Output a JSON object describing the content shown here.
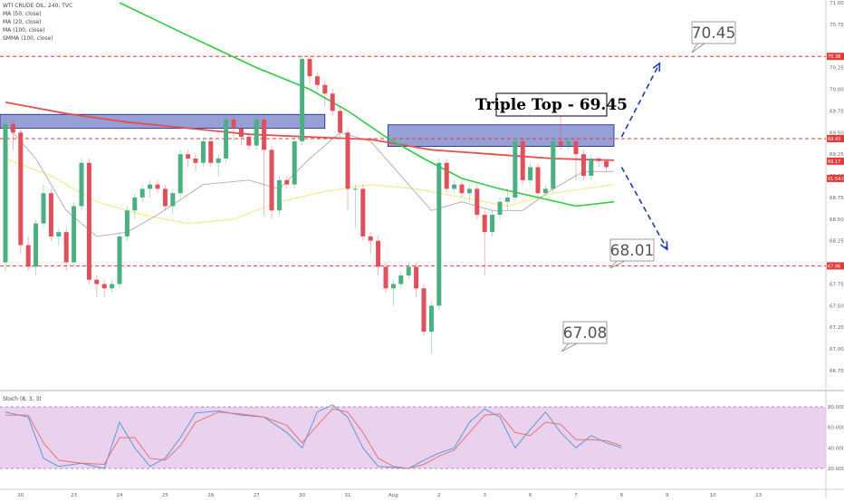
{
  "chart_data": {
    "type": "candlestick",
    "symbol_line": "WTI CRUDE OIL, 240, TVC",
    "indicator_legend": [
      "MA (50, close)",
      "MA (20, close)",
      "MA (100, close)",
      "SMMA (100, close)"
    ],
    "annotation_title": "Triple Top - 69.45",
    "callouts": [
      "70.45",
      "68.01",
      "67.08"
    ],
    "price_ticks": [
      {
        "price": 71.0,
        "label": "71.00"
      },
      {
        "price": 70.75,
        "label": "70.75"
      },
      {
        "price": 70.25,
        "label": "70.25"
      },
      {
        "price": 70.0,
        "label": "70.00"
      },
      {
        "price": 69.75,
        "label": "69.75"
      },
      {
        "price": 69.5,
        "label": "69.50"
      },
      {
        "price": 69.25,
        "label": "69.25"
      },
      {
        "price": 69.0,
        "label": "69.00"
      },
      {
        "price": 68.75,
        "label": "68.75"
      },
      {
        "price": 68.5,
        "label": "68.50"
      },
      {
        "price": 68.25,
        "label": "68.25"
      },
      {
        "price": 67.75,
        "label": "67.75"
      },
      {
        "price": 67.5,
        "label": "67.50"
      },
      {
        "price": 67.25,
        "label": "67.25"
      },
      {
        "price": 67.0,
        "label": "67.00"
      },
      {
        "price": 66.75,
        "label": "66.75"
      }
    ],
    "price_tags": [
      {
        "price": 70.38,
        "label": "70.38",
        "color": "#e53935"
      },
      {
        "price": 69.43,
        "label": "69.43",
        "color": "#e53935"
      },
      {
        "price": 69.17,
        "label": "69.17",
        "color": "#e53935"
      },
      {
        "price": 68.97,
        "label": "01:54:00",
        "color": "#e53935"
      },
      {
        "price": 67.96,
        "label": "67.96",
        "color": "#e53935"
      }
    ],
    "resistance_lines": [
      70.38,
      69.43,
      67.96
    ],
    "zones": [
      {
        "from_index": 0,
        "to_index": 42,
        "low": 69.55,
        "high": 69.71
      },
      {
        "from_index": 51,
        "to_index": 80,
        "low": 69.34,
        "high": 69.59
      }
    ],
    "x_labels": [
      {
        "index": 2,
        "label": "20"
      },
      {
        "index": 9,
        "label": "23"
      },
      {
        "index": 15,
        "label": "24"
      },
      {
        "index": 21,
        "label": "25"
      },
      {
        "index": 27,
        "label": "26"
      },
      {
        "index": 33,
        "label": "27"
      },
      {
        "index": 39,
        "label": "30"
      },
      {
        "index": 45,
        "label": "31"
      },
      {
        "index": 51,
        "label": "Aug"
      },
      {
        "index": 57,
        "label": "2"
      },
      {
        "index": 63,
        "label": "3"
      },
      {
        "index": 69,
        "label": "6"
      },
      {
        "index": 75,
        "label": "7"
      },
      {
        "index": 81,
        "label": "8"
      },
      {
        "index": 87,
        "label": "9"
      },
      {
        "index": 93,
        "label": "10"
      },
      {
        "index": 99,
        "label": "13"
      }
    ],
    "candles": [
      [
        68.0,
        69.6,
        69.65,
        67.9
      ],
      [
        69.6,
        69.5,
        69.65,
        69.3
      ],
      [
        69.5,
        68.2,
        69.55,
        68.1
      ],
      [
        68.2,
        67.95,
        68.3,
        67.9
      ],
      [
        67.95,
        68.45,
        68.5,
        67.85
      ],
      [
        68.45,
        68.8,
        68.9,
        68.4
      ],
      [
        68.8,
        68.3,
        68.85,
        68.25
      ],
      [
        68.3,
        68.35,
        68.4,
        68.2
      ],
      [
        68.35,
        68.0,
        68.4,
        67.9
      ],
      [
        68.0,
        68.65,
        68.7,
        67.95
      ],
      [
        68.65,
        69.15,
        69.2,
        68.6
      ],
      [
        69.15,
        67.8,
        69.2,
        67.75
      ],
      [
        67.8,
        67.75,
        67.85,
        67.6
      ],
      [
        67.75,
        67.7,
        67.8,
        67.6
      ],
      [
        67.7,
        67.75,
        67.8,
        67.65
      ],
      [
        67.75,
        68.3,
        68.35,
        67.7
      ],
      [
        68.3,
        68.6,
        68.65,
        68.25
      ],
      [
        68.6,
        68.75,
        68.8,
        68.5
      ],
      [
        68.75,
        68.85,
        68.9,
        68.7
      ],
      [
        68.85,
        68.9,
        68.95,
        68.75
      ],
      [
        68.9,
        68.85,
        68.95,
        68.8
      ],
      [
        68.85,
        68.65,
        68.9,
        68.6
      ],
      [
        68.65,
        68.8,
        68.85,
        68.55
      ],
      [
        68.8,
        69.25,
        69.3,
        68.75
      ],
      [
        69.25,
        69.2,
        69.3,
        69.1
      ],
      [
        69.2,
        69.15,
        69.25,
        69.05
      ],
      [
        69.15,
        69.4,
        69.45,
        69.1
      ],
      [
        69.4,
        69.15,
        69.45,
        69.1
      ],
      [
        69.15,
        69.2,
        69.25,
        69.0
      ],
      [
        69.2,
        69.65,
        69.7,
        69.15
      ],
      [
        69.65,
        69.55,
        69.7,
        69.4
      ],
      [
        69.55,
        69.45,
        69.6,
        69.35
      ],
      [
        69.45,
        69.35,
        69.5,
        69.3
      ],
      [
        69.35,
        69.65,
        69.7,
        69.3
      ],
      [
        69.65,
        69.3,
        69.7,
        68.55
      ],
      [
        69.3,
        68.6,
        69.35,
        68.5
      ],
      [
        68.6,
        68.95,
        69.0,
        68.55
      ],
      [
        68.95,
        68.9,
        69.0,
        68.85
      ],
      [
        68.9,
        69.4,
        69.45,
        68.85
      ],
      [
        69.4,
        70.35,
        70.4,
        69.35
      ],
      [
        70.35,
        70.15,
        70.4,
        70.05
      ],
      [
        70.15,
        70.05,
        70.2,
        70.0
      ],
      [
        70.05,
        69.95,
        70.1,
        69.8
      ],
      [
        69.95,
        69.75,
        70.0,
        69.7
      ],
      [
        69.75,
        69.5,
        69.8,
        69.45
      ],
      [
        69.5,
        68.85,
        69.55,
        68.6
      ],
      [
        68.85,
        68.85,
        68.9,
        68.4
      ],
      [
        68.85,
        68.3,
        68.9,
        68.25
      ],
      [
        68.3,
        68.25,
        68.35,
        68.1
      ],
      [
        68.25,
        67.95,
        68.3,
        67.85
      ],
      [
        67.95,
        67.7,
        68.0,
        67.65
      ],
      [
        67.7,
        67.75,
        67.8,
        67.5
      ],
      [
        67.75,
        67.85,
        67.9,
        67.7
      ],
      [
        67.85,
        67.95,
        68.0,
        67.8
      ],
      [
        67.95,
        67.7,
        68.0,
        67.6
      ],
      [
        67.7,
        67.2,
        67.75,
        67.15
      ],
      [
        67.2,
        67.5,
        67.55,
        66.95
      ],
      [
        67.5,
        69.15,
        69.2,
        67.45
      ],
      [
        69.15,
        68.85,
        69.2,
        68.8
      ],
      [
        68.85,
        68.9,
        68.95,
        68.8
      ],
      [
        68.9,
        68.8,
        68.95,
        68.75
      ],
      [
        68.8,
        68.85,
        68.9,
        68.7
      ],
      [
        68.85,
        68.55,
        68.9,
        68.5
      ],
      [
        68.55,
        68.35,
        68.6,
        67.85
      ],
      [
        68.35,
        68.55,
        68.6,
        68.3
      ],
      [
        68.55,
        68.7,
        68.75,
        68.5
      ],
      [
        68.7,
        68.75,
        68.85,
        68.6
      ],
      [
        68.75,
        69.4,
        69.45,
        68.7
      ],
      [
        69.4,
        68.95,
        69.45,
        68.9
      ],
      [
        68.95,
        69.1,
        69.15,
        68.9
      ],
      [
        69.1,
        68.8,
        69.15,
        68.75
      ],
      [
        68.8,
        68.85,
        68.9,
        68.8
      ],
      [
        68.85,
        69.4,
        69.45,
        68.8
      ],
      [
        69.4,
        69.35,
        69.75,
        69.3
      ],
      [
        69.35,
        69.4,
        69.45,
        69.3
      ],
      [
        69.4,
        69.25,
        69.45,
        68.95
      ],
      [
        69.25,
        69.0,
        69.3,
        68.95
      ],
      [
        69.0,
        69.2,
        69.25,
        68.95
      ],
      [
        69.2,
        69.17,
        69.22,
        69.1
      ],
      [
        69.17,
        69.1,
        69.2,
        69.05
      ]
    ],
    "ma_green": [
      [
        15,
        71.0
      ],
      [
        24,
        70.62
      ],
      [
        33,
        70.25
      ],
      [
        40,
        70.0
      ],
      [
        45,
        69.75
      ],
      [
        50,
        69.45
      ],
      [
        55,
        69.2
      ],
      [
        60,
        68.97
      ],
      [
        65,
        68.85
      ],
      [
        70,
        68.75
      ],
      [
        75,
        68.65
      ],
      [
        80,
        68.7
      ]
    ],
    "ma_red": [
      [
        0,
        69.85
      ],
      [
        8,
        69.72
      ],
      [
        16,
        69.62
      ],
      [
        24,
        69.55
      ],
      [
        32,
        69.48
      ],
      [
        40,
        69.45
      ],
      [
        48,
        69.42
      ],
      [
        56,
        69.3
      ],
      [
        64,
        69.25
      ],
      [
        72,
        69.2
      ],
      [
        80,
        69.18
      ]
    ],
    "ma_yellow": [
      [
        0,
        69.2
      ],
      [
        6,
        69.0
      ],
      [
        12,
        68.7
      ],
      [
        18,
        68.55
      ],
      [
        24,
        68.45
      ],
      [
        30,
        68.5
      ],
      [
        36,
        68.7
      ],
      [
        42,
        68.82
      ],
      [
        48,
        68.9
      ],
      [
        54,
        68.85
      ],
      [
        60,
        68.75
      ],
      [
        66,
        68.65
      ],
      [
        72,
        68.8
      ],
      [
        80,
        68.9
      ]
    ],
    "ma_gray": [
      [
        0,
        69.6
      ],
      [
        4,
        69.2
      ],
      [
        8,
        68.6
      ],
      [
        12,
        68.3
      ],
      [
        16,
        68.35
      ],
      [
        20,
        68.55
      ],
      [
        26,
        68.9
      ],
      [
        32,
        68.95
      ],
      [
        36,
        68.85
      ],
      [
        40,
        69.2
      ],
      [
        44,
        69.5
      ],
      [
        48,
        69.4
      ],
      [
        52,
        69.0
      ],
      [
        56,
        68.6
      ],
      [
        60,
        68.7
      ],
      [
        64,
        68.6
      ],
      [
        68,
        68.6
      ],
      [
        72,
        68.85
      ],
      [
        76,
        69.05
      ],
      [
        80,
        69.05
      ]
    ],
    "arrows": [
      {
        "from_index": 81,
        "from_price": 69.45,
        "to_index": 86,
        "to_price": 70.3
      },
      {
        "from_index": 81,
        "from_price": 69.1,
        "to_index": 87,
        "to_price": 68.15
      }
    ],
    "stoch_panel": {
      "label": "Stoch (8, 3, 3)",
      "upper": 80,
      "lower": 20,
      "ticks": [
        "80.0000",
        "60.0000",
        "40.0000",
        "20.0000"
      ],
      "k": [
        [
          0,
          75
        ],
        [
          3,
          70
        ],
        [
          5,
          30
        ],
        [
          7,
          22
        ],
        [
          10,
          25
        ],
        [
          13,
          20
        ],
        [
          15,
          65
        ],
        [
          17,
          40
        ],
        [
          19,
          22
        ],
        [
          21,
          30
        ],
        [
          23,
          50
        ],
        [
          25,
          74
        ],
        [
          28,
          76
        ],
        [
          31,
          72
        ],
        [
          34,
          70
        ],
        [
          37,
          55
        ],
        [
          39,
          40
        ],
        [
          41,
          75
        ],
        [
          43,
          82
        ],
        [
          45,
          70
        ],
        [
          47,
          40
        ],
        [
          49,
          22
        ],
        [
          51,
          21
        ],
        [
          53,
          20
        ],
        [
          55,
          28
        ],
        [
          57,
          35
        ],
        [
          59,
          40
        ],
        [
          61,
          65
        ],
        [
          63,
          78
        ],
        [
          65,
          70
        ],
        [
          67,
          40
        ],
        [
          69,
          58
        ],
        [
          71,
          75
        ],
        [
          73,
          55
        ],
        [
          75,
          40
        ],
        [
          77,
          52
        ],
        [
          79,
          45
        ],
        [
          81,
          40
        ]
      ],
      "d": [
        [
          0,
          72
        ],
        [
          3,
          72
        ],
        [
          5,
          45
        ],
        [
          7,
          28
        ],
        [
          10,
          25
        ],
        [
          13,
          24
        ],
        [
          15,
          50
        ],
        [
          17,
          50
        ],
        [
          19,
          30
        ],
        [
          21,
          28
        ],
        [
          23,
          42
        ],
        [
          25,
          65
        ],
        [
          28,
          75
        ],
        [
          31,
          73
        ],
        [
          34,
          70
        ],
        [
          37,
          62
        ],
        [
          39,
          45
        ],
        [
          41,
          62
        ],
        [
          43,
          78
        ],
        [
          45,
          75
        ],
        [
          47,
          55
        ],
        [
          49,
          30
        ],
        [
          51,
          22
        ],
        [
          53,
          20
        ],
        [
          55,
          24
        ],
        [
          57,
          32
        ],
        [
          59,
          38
        ],
        [
          61,
          55
        ],
        [
          63,
          72
        ],
        [
          65,
          73
        ],
        [
          67,
          55
        ],
        [
          69,
          52
        ],
        [
          71,
          65
        ],
        [
          73,
          63
        ],
        [
          75,
          48
        ],
        [
          77,
          48
        ],
        [
          79,
          47
        ],
        [
          81,
          42
        ]
      ]
    },
    "colors": {
      "bull": "#4caf82",
      "bear": "#e0505b",
      "zone": "#3f51b5",
      "resistance": "#e53935",
      "arrow": "#1e3fa8",
      "stoch_k": "#5b9bd5",
      "stoch_d": "#e57373",
      "stoch_band": "#e1bee7"
    }
  }
}
